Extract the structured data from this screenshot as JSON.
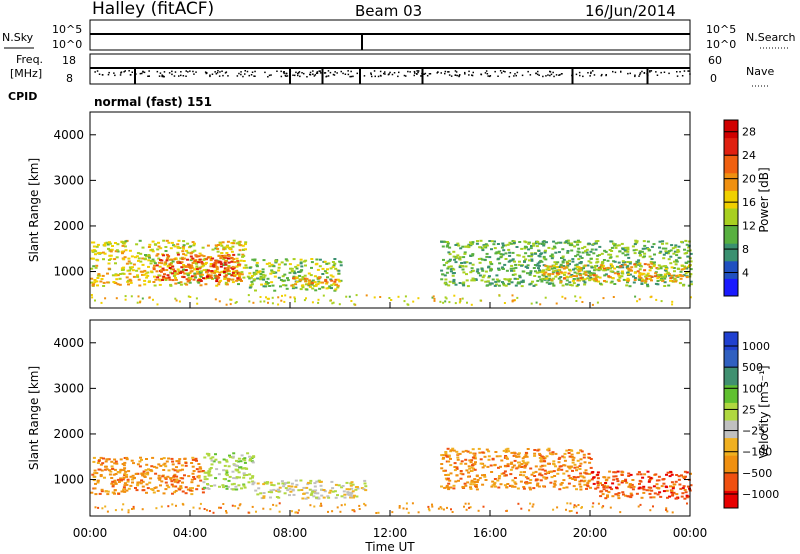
{
  "header": {
    "station": "Halley (fitACF)",
    "beam": "Beam 03",
    "date": "16/Jun/2014"
  },
  "top_panels": {
    "nsky_label": "N.Sky",
    "nsky_ticks": [
      "10^5",
      "10^0"
    ],
    "nsearch_label": "N.Search",
    "nsearch_ticks": [
      "10^5",
      "10^0"
    ],
    "freq_label_1": "Freq.",
    "freq_label_2": "[MHz]",
    "freq_ticks": [
      "18",
      "8"
    ],
    "nave_label": "Nave",
    "nave_ticks": [
      "60",
      "0"
    ],
    "cpid_label": "CPID",
    "cpid_value": "normal (fast) 151"
  },
  "colors": {
    "power_scale": [
      "#1a1aff",
      "#2050c0",
      "#3a9070",
      "#58b040",
      "#a8d020",
      "#f0d000",
      "#f09010",
      "#f06010",
      "#e02010",
      "#d00000"
    ],
    "velocity_scale": [
      "#e80000",
      "#f05010",
      "#f09010",
      "#f0b020",
      "#c0c0c0",
      "#b0d840",
      "#60c030",
      "#409070",
      "#3060c0",
      "#2040d0"
    ]
  },
  "chart_data": [
    {
      "type": "heatmap",
      "name": "power",
      "ylabel": "Slant Range [km]",
      "yticks": [
        "1000",
        "2000",
        "3000",
        "4000"
      ],
      "ylim": [
        200,
        4500
      ],
      "xlim_hours": [
        0,
        24
      ],
      "colorbar_label": "Power [dB]",
      "colorbar_ticks": [
        "4",
        "8",
        "12",
        "16",
        "20",
        "24",
        "28"
      ],
      "colorbar_range": [
        0,
        30
      ],
      "regions": [
        {
          "t": [
            0.0,
            6.2
          ],
          "r": [
            700,
            1700
          ],
          "level": 16
        },
        {
          "t": [
            2.5,
            6.0
          ],
          "r": [
            800,
            1400
          ],
          "level": 24
        },
        {
          "t": [
            6.2,
            10.0
          ],
          "r": [
            600,
            1300
          ],
          "level": 12
        },
        {
          "t": [
            8.0,
            10.0
          ],
          "r": [
            700,
            900
          ],
          "level": 20
        },
        {
          "t": [
            14.0,
            24.0
          ],
          "r": [
            700,
            1700
          ],
          "level": 10
        },
        {
          "t": [
            18.0,
            24.0
          ],
          "r": [
            800,
            1200
          ],
          "level": 18
        }
      ]
    },
    {
      "type": "heatmap",
      "name": "velocity",
      "ylabel": "Slant Range [km]",
      "yticks": [
        "1000",
        "2000",
        "3000",
        "4000"
      ],
      "ylim": [
        200,
        4500
      ],
      "xlim_hours": [
        0,
        24
      ],
      "xlabel": "Time UT",
      "xticks": [
        "00:00",
        "04:00",
        "08:00",
        "12:00",
        "16:00",
        "20:00",
        "00:00"
      ],
      "colorbar_label": "Velocity [m s⁻¹]",
      "colorbar_ticks": [
        "1000",
        "500",
        "100",
        "25",
        "−25",
        "−100",
        "−500",
        "−1000"
      ],
      "regions": [
        {
          "t": [
            0.0,
            4.5
          ],
          "r": [
            700,
            1500
          ],
          "level": "-100"
        },
        {
          "t": [
            4.5,
            6.5
          ],
          "r": [
            800,
            1600
          ],
          "level": "100"
        },
        {
          "t": [
            6.5,
            11.0
          ],
          "r": [
            600,
            1000
          ],
          "level": "25"
        },
        {
          "t": [
            14.0,
            20.0
          ],
          "r": [
            800,
            1700
          ],
          "level": "-100"
        },
        {
          "t": [
            20.0,
            24.0
          ],
          "r": [
            600,
            1200
          ],
          "level": "-500"
        }
      ]
    }
  ]
}
